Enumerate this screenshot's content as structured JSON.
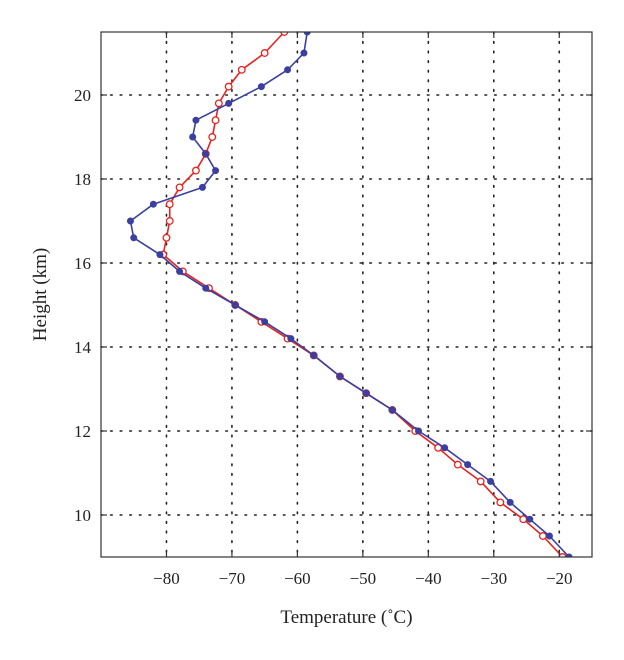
{
  "chart_data": {
    "type": "line",
    "title": "",
    "xlabel": "Temperature (˚C)",
    "ylabel": "Height (km)",
    "xlim": [
      -90,
      -15
    ],
    "ylim": [
      9,
      21.5
    ],
    "xticks": [
      -80,
      -70,
      -60,
      -50,
      -40,
      -30,
      -20
    ],
    "yticks": [
      10,
      12,
      14,
      16,
      18,
      20
    ],
    "xtick_labels": [
      "−80",
      "−70",
      "−60",
      "−50",
      "−40",
      "−30",
      "−20"
    ],
    "ytick_labels": [
      "10",
      "12",
      "14",
      "16",
      "18",
      "20"
    ],
    "grid": true,
    "legend": false,
    "series": [
      {
        "color": "#e8231e",
        "marker": "open-circle",
        "points": [
          [
            -62.0,
            21.5
          ],
          [
            -65.0,
            21.0
          ],
          [
            -68.5,
            20.6
          ],
          [
            -70.5,
            20.2
          ],
          [
            -72.0,
            19.8
          ],
          [
            -72.5,
            19.4
          ],
          [
            -73.0,
            19.0
          ],
          [
            -74.0,
            18.6
          ],
          [
            -75.5,
            18.2
          ],
          [
            -78.0,
            17.8
          ],
          [
            -79.5,
            17.4
          ],
          [
            -79.5,
            17.0
          ],
          [
            -80.0,
            16.6
          ],
          [
            -80.5,
            16.2
          ],
          [
            -77.5,
            15.8
          ],
          [
            -73.5,
            15.4
          ],
          [
            -69.5,
            15.0
          ],
          [
            -65.5,
            14.6
          ],
          [
            -61.5,
            14.2
          ],
          [
            -57.5,
            13.8
          ],
          [
            -53.5,
            13.3
          ],
          [
            -49.5,
            12.9
          ],
          [
            -45.5,
            12.5
          ],
          [
            -42.0,
            12.0
          ],
          [
            -38.5,
            11.6
          ],
          [
            -35.5,
            11.2
          ],
          [
            -32.0,
            10.8
          ],
          [
            -29.0,
            10.3
          ],
          [
            -25.5,
            9.9
          ],
          [
            -22.5,
            9.5
          ],
          [
            -19.5,
            9.0
          ]
        ]
      },
      {
        "color": "#3b3fa0",
        "marker": "filled-circle",
        "points": [
          [
            -58.5,
            21.5
          ],
          [
            -59.0,
            21.0
          ],
          [
            -61.5,
            20.6
          ],
          [
            -65.5,
            20.2
          ],
          [
            -70.5,
            19.8
          ],
          [
            -75.5,
            19.4
          ],
          [
            -76.0,
            19.0
          ],
          [
            -74.0,
            18.6
          ],
          [
            -72.5,
            18.2
          ],
          [
            -74.5,
            17.8
          ],
          [
            -82.0,
            17.4
          ],
          [
            -85.5,
            17.0
          ],
          [
            -85.0,
            16.6
          ],
          [
            -81.0,
            16.2
          ],
          [
            -78.0,
            15.8
          ],
          [
            -74.0,
            15.4
          ],
          [
            -69.5,
            15.0
          ],
          [
            -65.0,
            14.6
          ],
          [
            -61.0,
            14.2
          ],
          [
            -57.5,
            13.8
          ],
          [
            -53.5,
            13.3
          ],
          [
            -49.5,
            12.9
          ],
          [
            -45.5,
            12.5
          ],
          [
            -41.5,
            12.0
          ],
          [
            -37.5,
            11.6
          ],
          [
            -34.0,
            11.2
          ],
          [
            -30.5,
            10.8
          ],
          [
            -27.5,
            10.3
          ],
          [
            -24.5,
            9.9
          ],
          [
            -21.5,
            9.5
          ],
          [
            -18.5,
            9.0
          ]
        ]
      }
    ]
  }
}
